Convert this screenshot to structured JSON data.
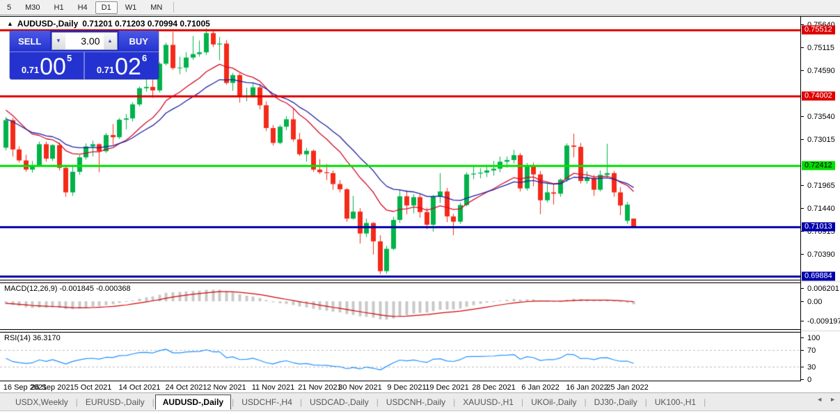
{
  "toolbar": {
    "timeframes": [
      "5",
      "M30",
      "H1",
      "H4",
      "D1",
      "W1",
      "MN"
    ],
    "active": "D1"
  },
  "chart": {
    "symbol_title": "AUDUSD-,Daily",
    "ohlc_text": "0.71201 0.71203 0.70994 0.71005",
    "collapse_icon": "triangle-up"
  },
  "trade_panel": {
    "sell_label": "SELL",
    "buy_label": "BUY",
    "volume": "3.00",
    "sell_price_small": "0.71",
    "sell_price_big": "00",
    "sell_price_sup": "5",
    "buy_price_small": "0.71",
    "buy_price_big": "02",
    "buy_price_sup": "6",
    "volume_down_icon": "chevron-down",
    "volume_up_icon": "chevron-up"
  },
  "chart_data": {
    "type": "candlestick",
    "symbol": "AUDUSD-",
    "timeframe": "Daily",
    "current_ohlc": {
      "open": "0.71201",
      "high": "0.71203",
      "low": "0.70994",
      "close": "0.71005"
    },
    "y_ticks": [
      "0.75640",
      "0.75115",
      "0.74590",
      "0.73540",
      "0.73015",
      "0.71965",
      "0.71440",
      "0.70915",
      "0.70390"
    ],
    "h_lines": [
      {
        "value": "0.75512",
        "price": 0.75512,
        "line_color": "#e00000",
        "badge_bg": "#dd0000",
        "badge_fg": "#ffffff"
      },
      {
        "value": "0.74002",
        "price": 0.74002,
        "line_color": "#e00000",
        "badge_bg": "#dd0000",
        "badge_fg": "#ffffff"
      },
      {
        "value": "0.72412",
        "price": 0.72412,
        "line_color": "#00e400",
        "badge_bg": "#00dd00",
        "badge_fg": "#000000"
      },
      {
        "value": "0.71013",
        "price": 0.71013,
        "line_color": "#0000aa",
        "badge_bg": "#0000aa",
        "badge_fg": "#ffffff"
      },
      {
        "value": "0.69884",
        "price": 0.69884,
        "line_color": "#0000aa",
        "badge_bg": "#0000aa",
        "badge_fg": "#ffffff"
      }
    ],
    "x_labels": [
      "16 Sep 2021",
      "26 Sep 2021",
      "5 Oct 2021",
      "14 Oct 2021",
      "24 Oct 2021",
      "2 Nov 2021",
      "11 Nov 2021",
      "21 Nov 2021",
      "30 Nov 2021",
      "9 Dec 2021",
      "19 Dec 2021",
      "28 Dec 2021",
      "6 Jan 2022",
      "16 Jan 2022",
      "25 Jan 2022"
    ],
    "x_label_indexes": [
      0,
      7,
      13,
      20,
      27,
      33,
      40,
      47,
      53,
      60,
      66,
      73,
      80,
      87,
      93
    ],
    "candles": [
      [
        0.7282,
        0.7352,
        0.7276,
        0.7345
      ],
      [
        0.7345,
        0.735,
        0.7262,
        0.7278
      ],
      [
        0.7278,
        0.7285,
        0.7248,
        0.7253
      ],
      [
        0.7253,
        0.7266,
        0.7227,
        0.7232
      ],
      [
        0.7232,
        0.7252,
        0.7225,
        0.7242
      ],
      [
        0.7242,
        0.7296,
        0.7238,
        0.729
      ],
      [
        0.729,
        0.7296,
        0.725,
        0.7257
      ],
      [
        0.7257,
        0.729,
        0.7252,
        0.7288
      ],
      [
        0.7288,
        0.7294,
        0.723,
        0.7236
      ],
      [
        0.7236,
        0.7242,
        0.717,
        0.718
      ],
      [
        0.718,
        0.7238,
        0.7172,
        0.7227
      ],
      [
        0.7227,
        0.7265,
        0.722,
        0.726
      ],
      [
        0.726,
        0.7292,
        0.7255,
        0.7285
      ],
      [
        0.7285,
        0.7298,
        0.7262,
        0.729
      ],
      [
        0.729,
        0.7292,
        0.7226,
        0.7274
      ],
      [
        0.7274,
        0.7316,
        0.727,
        0.7311
      ],
      [
        0.7311,
        0.7336,
        0.7288,
        0.7306
      ],
      [
        0.7306,
        0.735,
        0.7302,
        0.7346
      ],
      [
        0.7346,
        0.7359,
        0.7324,
        0.7349
      ],
      [
        0.7349,
        0.7386,
        0.7342,
        0.7381
      ],
      [
        0.7381,
        0.7422,
        0.7376,
        0.7418
      ],
      [
        0.7418,
        0.744,
        0.741,
        0.7421
      ],
      [
        0.7421,
        0.7438,
        0.7396,
        0.7413
      ],
      [
        0.7413,
        0.7478,
        0.7408,
        0.7474
      ],
      [
        0.7474,
        0.7522,
        0.747,
        0.7517
      ],
      [
        0.7517,
        0.7547,
        0.746,
        0.7464
      ],
      [
        0.7464,
        0.749,
        0.745,
        0.7465
      ],
      [
        0.7465,
        0.75,
        0.7455,
        0.7488
      ],
      [
        0.7488,
        0.7537,
        0.7483,
        0.7496
      ],
      [
        0.7496,
        0.7527,
        0.749,
        0.75
      ],
      [
        0.75,
        0.7555,
        0.7494,
        0.7544
      ],
      [
        0.7544,
        0.7552,
        0.7512,
        0.7518
      ],
      [
        0.7518,
        0.7535,
        0.7482,
        0.752
      ],
      [
        0.752,
        0.7528,
        0.7426,
        0.743
      ],
      [
        0.743,
        0.7453,
        0.7412,
        0.7448
      ],
      [
        0.7448,
        0.7452,
        0.7385,
        0.7397
      ],
      [
        0.7397,
        0.7419,
        0.7388,
        0.7401
      ],
      [
        0.7401,
        0.7431,
        0.7396,
        0.742
      ],
      [
        0.742,
        0.7428,
        0.737,
        0.7379
      ],
      [
        0.7379,
        0.7388,
        0.732,
        0.7327
      ],
      [
        0.7327,
        0.7334,
        0.7287,
        0.7293
      ],
      [
        0.7293,
        0.7334,
        0.729,
        0.733
      ],
      [
        0.733,
        0.7354,
        0.7322,
        0.7347
      ],
      [
        0.7347,
        0.7372,
        0.7296,
        0.7301
      ],
      [
        0.7301,
        0.7316,
        0.7263,
        0.7267
      ],
      [
        0.7267,
        0.7282,
        0.725,
        0.7275
      ],
      [
        0.7275,
        0.7278,
        0.7227,
        0.7232
      ],
      [
        0.7232,
        0.7256,
        0.7222,
        0.7226
      ],
      [
        0.7226,
        0.7245,
        0.7208,
        0.7224
      ],
      [
        0.7224,
        0.723,
        0.7186,
        0.7199
      ],
      [
        0.7199,
        0.7208,
        0.718,
        0.7187
      ],
      [
        0.7187,
        0.719,
        0.7113,
        0.712
      ],
      [
        0.712,
        0.7172,
        0.7118,
        0.7136
      ],
      [
        0.7136,
        0.7144,
        0.7063,
        0.7086
      ],
      [
        0.7086,
        0.712,
        0.7078,
        0.711
      ],
      [
        0.711,
        0.7112,
        0.7038,
        0.7068
      ],
      [
        0.7068,
        0.7082,
        0.6993,
        0.7
      ],
      [
        0.7,
        0.7058,
        0.6994,
        0.7051
      ],
      [
        0.7051,
        0.7124,
        0.7048,
        0.7117
      ],
      [
        0.7117,
        0.7187,
        0.711,
        0.7171
      ],
      [
        0.7171,
        0.7185,
        0.713,
        0.715
      ],
      [
        0.715,
        0.7176,
        0.7132,
        0.7169
      ],
      [
        0.7169,
        0.7176,
        0.7122,
        0.7135
      ],
      [
        0.7135,
        0.7145,
        0.7096,
        0.7106
      ],
      [
        0.7106,
        0.7174,
        0.709,
        0.717
      ],
      [
        0.717,
        0.7224,
        0.7156,
        0.7182
      ],
      [
        0.7182,
        0.719,
        0.7112,
        0.7125
      ],
      [
        0.7125,
        0.7131,
        0.7082,
        0.7113
      ],
      [
        0.7113,
        0.7156,
        0.7108,
        0.7151
      ],
      [
        0.7151,
        0.7226,
        0.7148,
        0.7221
      ],
      [
        0.7221,
        0.7242,
        0.721,
        0.7223
      ],
      [
        0.7223,
        0.7235,
        0.7212,
        0.7225
      ],
      [
        0.7225,
        0.7243,
        0.7215,
        0.723
      ],
      [
        0.723,
        0.7252,
        0.7218,
        0.7234
      ],
      [
        0.7234,
        0.7262,
        0.7226,
        0.725
      ],
      [
        0.725,
        0.7262,
        0.7236,
        0.7254
      ],
      [
        0.7254,
        0.7277,
        0.7246,
        0.7265
      ],
      [
        0.7265,
        0.727,
        0.7182,
        0.7189
      ],
      [
        0.7189,
        0.7247,
        0.7184,
        0.7238
      ],
      [
        0.7238,
        0.7248,
        0.7194,
        0.7221
      ],
      [
        0.7221,
        0.7229,
        0.713,
        0.7162
      ],
      [
        0.7162,
        0.7202,
        0.7157,
        0.718
      ],
      [
        0.718,
        0.7198,
        0.7152,
        0.7177
      ],
      [
        0.7177,
        0.7212,
        0.717,
        0.7209
      ],
      [
        0.7209,
        0.7292,
        0.7204,
        0.7287
      ],
      [
        0.7287,
        0.7314,
        0.726,
        0.7284
      ],
      [
        0.7284,
        0.7293,
        0.72,
        0.7206
      ],
      [
        0.7206,
        0.7228,
        0.72,
        0.7213
      ],
      [
        0.7213,
        0.722,
        0.7172,
        0.7186
      ],
      [
        0.7186,
        0.723,
        0.7182,
        0.722
      ],
      [
        0.722,
        0.7291,
        0.7214,
        0.7224
      ],
      [
        0.7224,
        0.7229,
        0.717,
        0.718
      ],
      [
        0.718,
        0.7192,
        0.7128,
        0.715
      ],
      [
        0.7115,
        0.7158,
        0.7108,
        0.7152
      ],
      [
        0.71201,
        0.71203,
        0.70994,
        0.71005
      ]
    ],
    "indicators": {
      "ma_fast": {
        "color": "#d20a2a",
        "period": 13,
        "seed": 0.7372
      },
      "ma_slow": {
        "color": "#1c1ca8",
        "period": 21,
        "seed": 0.7348
      },
      "macd": {
        "label": "MACD(12,26,9)",
        "values_text": "-0.001845 -0.000368",
        "axis_values": [
          "0.006201",
          "0.00",
          "-0.009197"
        ],
        "histogram_color": "#c8c8c8",
        "signal_color": "#d00000"
      },
      "rsi": {
        "label": "RSI(14)",
        "value_text": "36.3170",
        "axis_values": [
          "100",
          "70",
          "30",
          "0"
        ],
        "levels": [
          70,
          30
        ],
        "line_color": "#1e90ff",
        "level_color": "#bbbbbb"
      }
    },
    "colors": {
      "bull": "#00b24a",
      "bear": "#f42a19"
    }
  },
  "tabs": {
    "items": [
      "USDX,Weekly",
      "EURUSD-,Daily",
      "AUDUSD-,Daily",
      "USDCHF-,H4",
      "USDCAD-,Daily",
      "USDCNH-,Daily",
      "XAUUSD-,H1",
      "UKOil-,Daily",
      "DJ30-,Daily",
      "UK100-,H1"
    ],
    "active": "AUDUSD-,Daily",
    "nav_left_icon": "◄",
    "nav_right_icon": "►"
  }
}
